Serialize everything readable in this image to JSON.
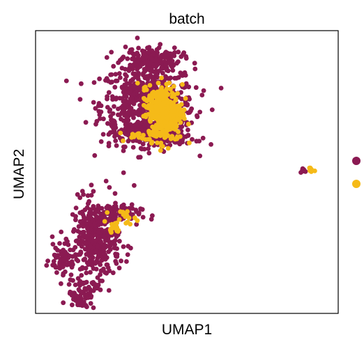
{
  "chart_data": {
    "type": "scatter",
    "title": "batch",
    "xlabel": "UMAP1",
    "ylabel": "UMAP2",
    "xlim": [
      0,
      100
    ],
    "ylim": [
      0,
      100
    ],
    "grid": false,
    "ticks": false,
    "legend_placement": "right",
    "series": [
      {
        "color": "#8B1A52",
        "clusters": [
          {
            "cx": 37,
            "cy": 74,
            "rx": 14,
            "ry": 13,
            "n": 650
          },
          {
            "cx": 38,
            "cy": 90,
            "rx": 9,
            "ry": 4,
            "n": 160
          },
          {
            "cx": 39,
            "cy": 63,
            "rx": 12,
            "ry": 4,
            "n": 140
          },
          {
            "cx": 20,
            "cy": 26,
            "rx": 7,
            "ry": 13,
            "n": 380
          },
          {
            "cx": 9,
            "cy": 19,
            "rx": 4,
            "ry": 4,
            "n": 60
          },
          {
            "cx": 15,
            "cy": 7,
            "rx": 4,
            "ry": 5,
            "n": 70
          },
          {
            "cx": 26,
            "cy": 35,
            "rx": 8,
            "ry": 3,
            "n": 80
          },
          {
            "cx": 88.3,
            "cy": 50.4,
            "rx": 0.6,
            "ry": 1.0,
            "n": 8
          }
        ]
      },
      {
        "color": "#F5BA18",
        "clusters": [
          {
            "cx": 43,
            "cy": 71,
            "rx": 5,
            "ry": 9,
            "n": 340
          },
          {
            "cx": 39,
            "cy": 75,
            "rx": 4,
            "ry": 4,
            "n": 60
          },
          {
            "cx": 35,
            "cy": 63,
            "rx": 6,
            "ry": 2,
            "n": 25
          },
          {
            "cx": 29,
            "cy": 34,
            "rx": 4,
            "ry": 2,
            "n": 18
          },
          {
            "cx": 26,
            "cy": 30,
            "rx": 2,
            "ry": 2,
            "n": 14
          },
          {
            "cx": 91.5,
            "cy": 50.6,
            "rx": 1.0,
            "ry": 1.2,
            "n": 7
          }
        ]
      }
    ]
  }
}
